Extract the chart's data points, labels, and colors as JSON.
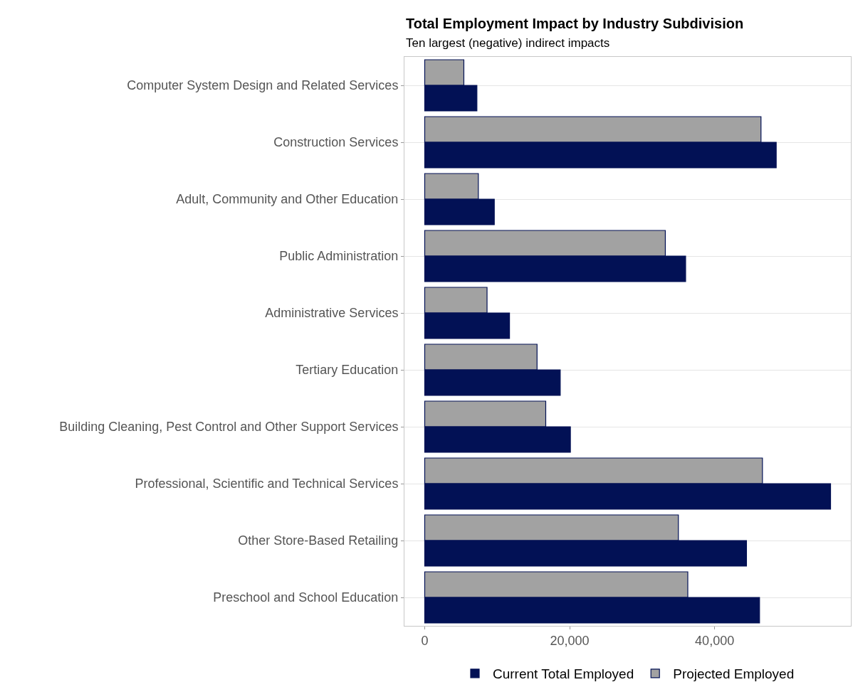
{
  "chart_data": {
    "type": "bar",
    "orientation": "horizontal",
    "title": "Total Employment Impact by Industry Subdivision",
    "subtitle": "Ten largest (negative) indirect impacts",
    "categories": [
      "Computer System Design and Related Services",
      "Construction Services",
      "Adult, Community and Other Education",
      "Public Administration",
      "Administrative Services",
      "Tertiary Education",
      "Building Cleaning, Pest Control and Other Support Services",
      "Professional, Scientific and Technical Services",
      "Other Store-Based Retailing",
      "Preschool and School Education"
    ],
    "series": [
      {
        "name": "Current Total Employed",
        "color": "#021155",
        "values": [
          7200,
          48500,
          9600,
          36000,
          11700,
          18700,
          20100,
          56000,
          44400,
          46200
        ]
      },
      {
        "name": "Projected Employed",
        "color": "#a2a2a2",
        "values": [
          5400,
          46400,
          7400,
          33200,
          8600,
          15500,
          16700,
          46600,
          35000,
          36300
        ]
      }
    ],
    "xlim": [
      -2800,
      58800
    ],
    "xticks": [
      {
        "value": 0,
        "label": "0"
      },
      {
        "value": 20000,
        "label": "20,000"
      },
      {
        "value": 40000,
        "label": "40,000"
      }
    ],
    "grid": "y",
    "legend": "bottom"
  }
}
